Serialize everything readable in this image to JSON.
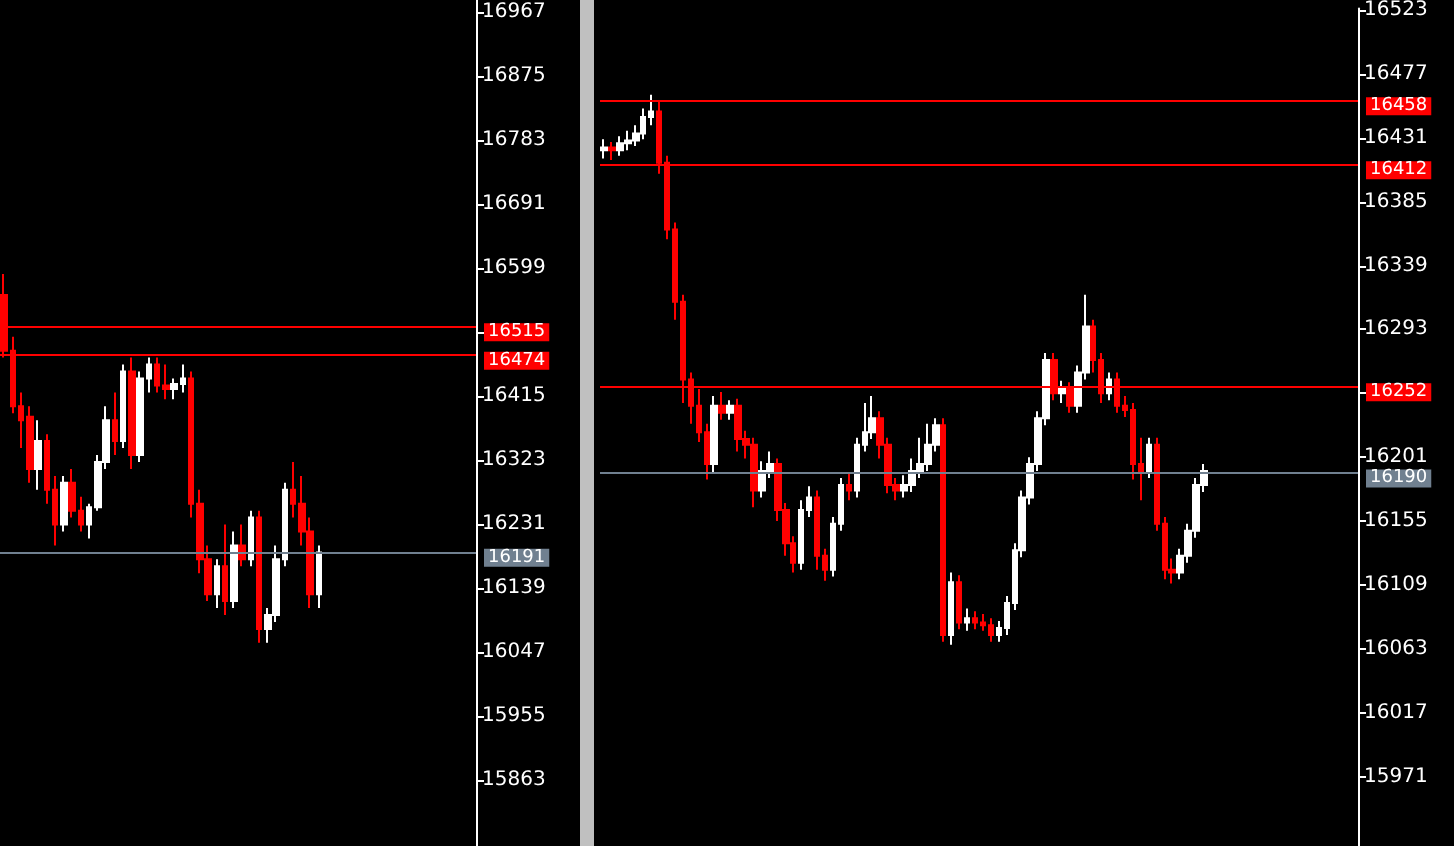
{
  "chart_data": [
    {
      "type": "candlestick",
      "categories": [
        null,
        null,
        null,
        null,
        null,
        null,
        null,
        null,
        null,
        null,
        null,
        null,
        null,
        null,
        null,
        null,
        null,
        null,
        null,
        null,
        null,
        null,
        null,
        null,
        null,
        null,
        null,
        null,
        null,
        null,
        null,
        null,
        null,
        null,
        null,
        null,
        null,
        null,
        null,
        null,
        null,
        null,
        null,
        null,
        null,
        null,
        null,
        null,
        null,
        null,
        null,
        null,
        null,
        null,
        null,
        null
      ],
      "ohlc": [
        [
          16560,
          16590,
          16470,
          16480
        ],
        [
          16480,
          16500,
          16390,
          16400
        ],
        [
          16400,
          16420,
          16340,
          16380
        ],
        [
          16385,
          16400,
          16290,
          16310
        ],
        [
          16310,
          16380,
          16280,
          16350
        ],
        [
          16350,
          16360,
          16260,
          16280
        ],
        [
          16280,
          16300,
          16200,
          16230
        ],
        [
          16230,
          16300,
          16220,
          16290
        ],
        [
          16290,
          16310,
          16240,
          16250
        ],
        [
          16250,
          16270,
          16220,
          16230
        ],
        [
          16230,
          16260,
          16210,
          16255
        ],
        [
          16255,
          16330,
          16250,
          16320
        ],
        [
          16320,
          16400,
          16310,
          16380
        ],
        [
          16380,
          16420,
          16330,
          16350
        ],
        [
          16350,
          16460,
          16340,
          16450
        ],
        [
          16450,
          16470,
          16310,
          16330
        ],
        [
          16330,
          16450,
          16320,
          16440
        ],
        [
          16440,
          16470,
          16420,
          16460
        ],
        [
          16460,
          16470,
          16420,
          16430
        ],
        [
          16430,
          16460,
          16410,
          16425
        ],
        [
          16425,
          16440,
          16410,
          16432
        ],
        [
          16432,
          16460,
          16420,
          16440
        ],
        [
          16440,
          16450,
          16240,
          16260
        ],
        [
          16260,
          16280,
          16160,
          16180
        ],
        [
          16180,
          16200,
          16120,
          16130
        ],
        [
          16130,
          16180,
          16110,
          16170
        ],
        [
          16170,
          16230,
          16100,
          16120
        ],
        [
          16120,
          16220,
          16110,
          16200
        ],
        [
          16200,
          16230,
          16170,
          16180
        ],
        [
          16180,
          16250,
          16170,
          16240
        ],
        [
          16240,
          16250,
          16060,
          16080
        ],
        [
          16080,
          16110,
          16060,
          16100
        ],
        [
          16100,
          16200,
          16090,
          16180
        ],
        [
          16180,
          16290,
          16170,
          16280
        ],
        [
          16280,
          16320,
          16240,
          16260
        ],
        [
          16260,
          16300,
          16200,
          16220
        ],
        [
          16220,
          16240,
          16110,
          16130
        ],
        [
          16130,
          16200,
          16110,
          16190
        ],
        null,
        null,
        null,
        null,
        null,
        null,
        null,
        null,
        null,
        null,
        null,
        null,
        null,
        null,
        null,
        null,
        null,
        null
      ],
      "ylim": [
        15768,
        16984
      ],
      "yticks": [
        15863,
        15955,
        16047,
        16139,
        16231,
        16323,
        16415,
        {
          "value": 16507,
          "label": null
        },
        16599,
        16691,
        16783,
        16875,
        16967
      ],
      "ref_lines": [
        {
          "axis": "y",
          "value": 16515,
          "label": "16515",
          "color": "#ff0000"
        },
        {
          "axis": "y",
          "value": 16474,
          "label": "16474",
          "color": "#ff0000"
        },
        {
          "axis": "y",
          "value": 16191,
          "label": "16191",
          "color": "#708090"
        }
      ],
      "tick_labels": "y"
    },
    {
      "type": "candlestick",
      "categories": [
        null,
        null,
        null,
        null,
        null,
        null,
        null,
        null,
        null,
        null,
        null,
        null,
        null,
        null,
        null,
        null,
        null,
        null,
        null,
        null,
        null,
        null,
        null,
        null,
        null,
        null,
        null,
        null,
        null,
        null,
        null,
        null,
        null,
        null,
        null,
        null,
        null,
        null,
        null,
        null,
        null,
        null,
        null,
        null,
        null,
        null,
        null,
        null,
        null,
        null,
        null,
        null,
        null,
        null,
        null,
        null,
        null,
        null,
        null,
        null,
        null,
        null,
        null,
        null,
        null,
        null,
        null,
        null,
        null,
        null,
        null,
        null,
        null,
        null,
        null,
        null,
        null,
        null,
        null,
        null,
        null,
        null,
        null,
        null,
        null,
        null,
        null,
        null,
        null,
        null,
        null,
        null,
        null,
        null,
        null,
        null
      ],
      "ohlc": [
        [
          16422,
          16430,
          16416,
          16424
        ],
        [
          16424,
          16428,
          16415,
          16422
        ],
        [
          16422,
          16432,
          16418,
          16427
        ],
        [
          16427,
          16436,
          16422,
          16429
        ],
        [
          16429,
          16440,
          16425,
          16434
        ],
        [
          16434,
          16452,
          16430,
          16446
        ],
        [
          16446,
          16462,
          16440,
          16450
        ],
        [
          16450,
          16458,
          16405,
          16413
        ],
        [
          16413,
          16418,
          16358,
          16365
        ],
        [
          16365,
          16370,
          16300,
          16313
        ],
        [
          16313,
          16318,
          16240,
          16257
        ],
        [
          16257,
          16262,
          16225,
          16238
        ],
        [
          16238,
          16250,
          16212,
          16219
        ],
        [
          16219,
          16225,
          16185,
          16196
        ],
        [
          16196,
          16245,
          16190,
          16238
        ],
        [
          16238,
          16248,
          16228,
          16233
        ],
        [
          16233,
          16242,
          16228,
          16238
        ],
        [
          16238,
          16243,
          16205,
          16214
        ],
        [
          16214,
          16220,
          16200,
          16210
        ],
        [
          16210,
          16215,
          16165,
          16177
        ],
        [
          16177,
          16198,
          16172,
          16191
        ],
        [
          16191,
          16205,
          16186,
          16196
        ],
        [
          16196,
          16200,
          16155,
          16163
        ],
        [
          16163,
          16168,
          16130,
          16139
        ],
        [
          16139,
          16144,
          16118,
          16125
        ],
        [
          16125,
          16170,
          16120,
          16163
        ],
        [
          16163,
          16180,
          16158,
          16172
        ],
        [
          16172,
          16177,
          16120,
          16130
        ],
        [
          16130,
          16135,
          16112,
          16120
        ],
        [
          16120,
          16158,
          16115,
          16153
        ],
        [
          16153,
          16186,
          16148,
          16181
        ],
        [
          16181,
          16190,
          16170,
          16177
        ],
        [
          16177,
          16215,
          16172,
          16210
        ],
        [
          16210,
          16240,
          16205,
          16219
        ],
        [
          16219,
          16245,
          16214,
          16229
        ],
        [
          16229,
          16234,
          16200,
          16210
        ],
        [
          16210,
          16215,
          16175,
          16181
        ],
        [
          16181,
          16186,
          16170,
          16177
        ],
        [
          16177,
          16188,
          16172,
          16181
        ],
        [
          16181,
          16200,
          16176,
          16191
        ],
        [
          16191,
          16215,
          16186,
          16196
        ],
        [
          16196,
          16225,
          16191,
          16210
        ],
        [
          16210,
          16229,
          16205,
          16224
        ],
        [
          16224,
          16229,
          16068,
          16073
        ],
        [
          16073,
          16118,
          16066,
          16111
        ],
        [
          16111,
          16116,
          16077,
          16082
        ],
        [
          16082,
          16092,
          16076,
          16085
        ],
        [
          16085,
          16090,
          16077,
          16082
        ],
        [
          16082,
          16088,
          16076,
          16080
        ],
        [
          16080,
          16085,
          16068,
          16073
        ],
        [
          16073,
          16083,
          16068,
          16078
        ],
        [
          16078,
          16101,
          16073,
          16096
        ],
        [
          16096,
          16139,
          16091,
          16134
        ],
        [
          16134,
          16177,
          16129,
          16172
        ],
        [
          16172,
          16201,
          16167,
          16196
        ],
        [
          16196,
          16234,
          16191,
          16229
        ],
        [
          16229,
          16276,
          16224,
          16271
        ],
        [
          16271,
          16276,
          16242,
          16247
        ],
        [
          16247,
          16256,
          16240,
          16250
        ],
        [
          16250,
          16255,
          16233,
          16238
        ],
        [
          16238,
          16267,
          16233,
          16262
        ],
        [
          16262,
          16318,
          16257,
          16295
        ],
        [
          16295,
          16300,
          16262,
          16271
        ],
        [
          16271,
          16276,
          16240,
          16247
        ],
        [
          16247,
          16262,
          16242,
          16257
        ],
        [
          16257,
          16262,
          16233,
          16238
        ],
        [
          16238,
          16245,
          16230,
          16235
        ],
        [
          16235,
          16240,
          16185,
          16196
        ],
        [
          16196,
          16215,
          16170,
          16191
        ],
        [
          16191,
          16215,
          16186,
          16210
        ],
        [
          16210,
          16215,
          16148,
          16153
        ],
        [
          16153,
          16158,
          16113,
          16120
        ],
        [
          16120,
          16128,
          16110,
          16118
        ],
        [
          16118,
          16135,
          16113,
          16130
        ],
        [
          16130,
          16153,
          16125,
          16148
        ],
        [
          16148,
          16186,
          16143,
          16181
        ],
        [
          16181,
          16196,
          16176,
          16191
        ],
        null,
        null,
        null,
        null,
        null,
        null,
        null,
        null,
        null,
        null,
        null,
        null,
        null,
        null,
        null,
        null,
        null,
        null,
        null
      ],
      "ylim": [
        15921,
        16524
      ],
      "yticks": [
        15971,
        16017,
        16063,
        16109,
        16155,
        16201,
        {
          "value": 16247,
          "label": null
        },
        16293,
        16339,
        16385,
        16431,
        16477,
        16523
      ],
      "ref_lines": [
        {
          "axis": "y",
          "value": 16458,
          "label": "16458",
          "color": "#ff0000"
        },
        {
          "axis": "y",
          "value": 16412,
          "label": "16412",
          "color": "#ff0000"
        },
        {
          "axis": "y",
          "value": 16252,
          "label": "16252",
          "color": "#ff0000"
        },
        {
          "axis": "y",
          "value": 16190,
          "label": "16190",
          "color": "#708090"
        }
      ],
      "tick_labels": "y"
    }
  ]
}
